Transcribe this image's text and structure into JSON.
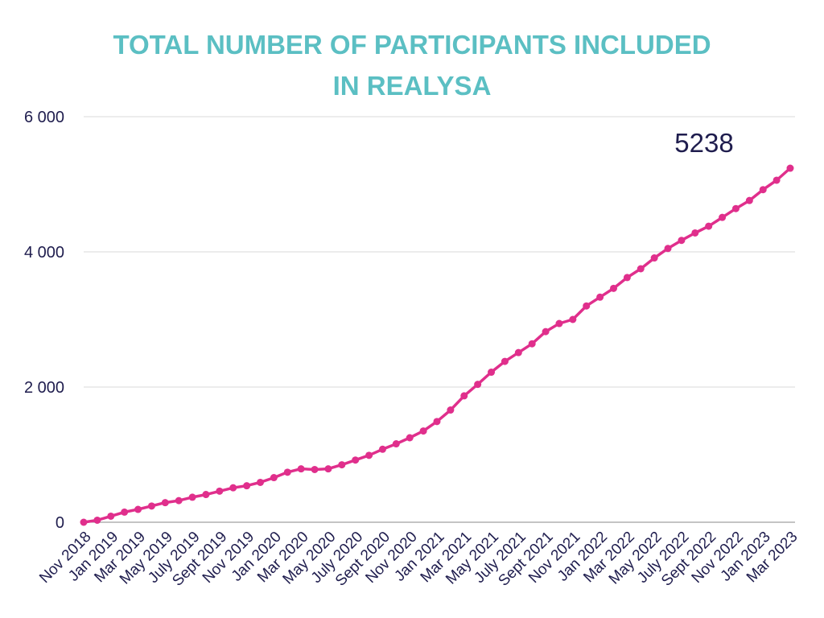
{
  "chart_data": {
    "type": "line",
    "title_lines": [
      "TOTAL NUMBER OF PARTICIPANTS INCLUDED",
      "IN REALYSA"
    ],
    "xlabel": "",
    "ylabel": "",
    "ylim": [
      0,
      6000
    ],
    "yticks": [
      0,
      2000,
      4000,
      6000
    ],
    "ytick_labels": [
      "0",
      "2 000",
      "4 000",
      "6 000"
    ],
    "grid": true,
    "x_labels": [
      "Nov 2018",
      "Jan 2019",
      "Mar 2019",
      "May 2019",
      "July 2019",
      "Sept 2019",
      "Nov 2019",
      "Jan 2020",
      "Mar 2020",
      "May 2020",
      "July 2020",
      "Sept 2020",
      "Nov 2020",
      "Jan 2021",
      "Mar 2021",
      "May 2021",
      "July 2021",
      "Sept 2021",
      "Nov 2021",
      "Jan 2022",
      "Mar 2022",
      "May 2022",
      "July 2022",
      "Sept 2022",
      "Nov 2022",
      "Jan 2023",
      "Mar 2023"
    ],
    "series": [
      {
        "values": [
          0,
          30,
          90,
          150,
          190,
          240,
          290,
          320,
          370,
          410,
          460,
          510,
          540,
          590,
          660,
          740,
          790,
          780,
          790,
          850,
          920,
          990,
          1080,
          1160,
          1250,
          1350,
          1490,
          1660,
          1870,
          2040,
          2220,
          2380,
          2510,
          2640,
          2820,
          2940,
          3000,
          3200,
          3330,
          3460,
          3620,
          3750,
          3910,
          4050,
          4170,
          4280,
          4380,
          4510,
          4640,
          4760,
          4920,
          5060,
          5238
        ],
        "color": "#e02f8c"
      }
    ],
    "annotations": [
      {
        "text": "5238"
      }
    ],
    "colors": {
      "title": "#5bbfc3",
      "line": "#e02f8c",
      "text": "#1f1d4e",
      "grid": "#d9d9d9",
      "axis": "#8a8a8a"
    }
  }
}
